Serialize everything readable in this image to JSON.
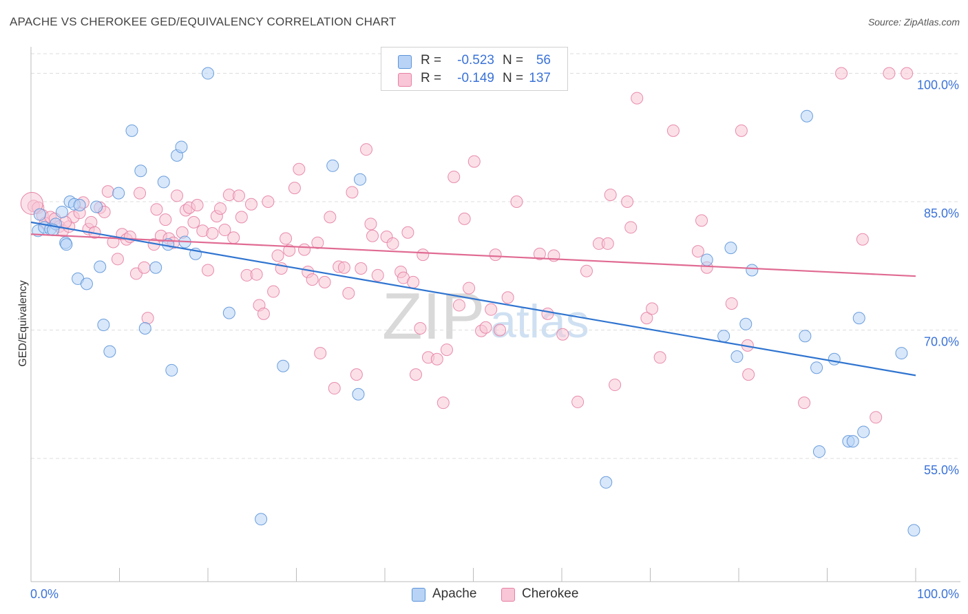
{
  "header": {
    "title": "APACHE VS CHEROKEE GED/EQUIVALENCY CORRELATION CHART",
    "source": "Source: ZipAtlas.com"
  },
  "watermark": {
    "zip": "ZIP",
    "atlas": "atlas"
  },
  "legend": {
    "r_label": "R =",
    "n_label": "N =",
    "rows": [
      {
        "r": "-0.523",
        "n": "56"
      },
      {
        "r": "-0.149",
        "n": "137"
      }
    ]
  },
  "colors": {
    "apache_fill": "#b8d3f5",
    "apache_stroke": "#5b93d8",
    "apache_line": "#2f74d0",
    "cherokee_fill": "#f8c6d6",
    "cherokee_stroke": "#e680a3",
    "cherokee_line": "#e06a92",
    "value_text": "#3a72d8",
    "grid": "#dddddd"
  },
  "chart_data": {
    "type": "scatter",
    "title": "APACHE VS CHEROKEE GED/EQUIVALENCY CORRELATION CHART",
    "xlabel": "",
    "ylabel": "GED/Equivalency",
    "xlim": [
      0,
      100
    ],
    "ylim": [
      40.6,
      103.1
    ],
    "x_tick_labels": [
      "0.0%",
      "100.0%"
    ],
    "y_ticks": [
      55,
      70,
      85,
      100
    ],
    "y_tick_labels": [
      "55.0%",
      "70.0%",
      "85.0%",
      "100.0%"
    ],
    "grid": true,
    "legend_position": "top-center",
    "series": [
      {
        "name": "Apache",
        "r": -0.523,
        "n": 56,
        "trend": {
          "x": [
            0,
            100
          ],
          "y": [
            82.6,
            64.7
          ]
        },
        "points": [
          [
            0.8,
            81.6
          ],
          [
            1.5,
            82.0
          ],
          [
            2.2,
            81.8
          ],
          [
            2.8,
            82.4
          ],
          [
            3.5,
            83.8
          ],
          [
            3.9,
            80.2
          ],
          [
            4.4,
            85.0
          ],
          [
            4.9,
            84.7
          ],
          [
            5.5,
            84.6
          ],
          [
            5.3,
            76.0
          ],
          [
            6.3,
            75.4
          ],
          [
            7.4,
            84.4
          ],
          [
            7.8,
            77.4
          ],
          [
            8.2,
            70.6
          ],
          [
            8.9,
            67.5
          ],
          [
            9.9,
            86.0
          ],
          [
            11.4,
            93.3
          ],
          [
            12.4,
            88.6
          ],
          [
            12.9,
            70.2
          ],
          [
            14.1,
            77.3
          ],
          [
            15.0,
            87.3
          ],
          [
            15.9,
            65.3
          ],
          [
            16.5,
            90.4
          ],
          [
            17.0,
            91.4
          ],
          [
            17.4,
            80.3
          ],
          [
            15.5,
            80.0
          ],
          [
            18.6,
            78.9
          ],
          [
            20.0,
            100.0
          ],
          [
            22.4,
            72.0
          ],
          [
            26.0,
            47.9
          ],
          [
            28.5,
            65.8
          ],
          [
            34.1,
            89.2
          ],
          [
            37.2,
            87.6
          ],
          [
            37.0,
            62.5
          ],
          [
            42.8,
            100.0
          ],
          [
            65.0,
            52.2
          ],
          [
            76.4,
            78.2
          ],
          [
            78.3,
            69.3
          ],
          [
            79.1,
            79.6
          ],
          [
            79.8,
            66.9
          ],
          [
            80.8,
            70.7
          ],
          [
            81.5,
            77.0
          ],
          [
            87.7,
            95.0
          ],
          [
            87.5,
            69.3
          ],
          [
            88.8,
            65.6
          ],
          [
            89.1,
            55.8
          ],
          [
            90.8,
            66.6
          ],
          [
            92.4,
            57.0
          ],
          [
            92.9,
            57.0
          ],
          [
            93.6,
            71.4
          ],
          [
            94.1,
            58.1
          ],
          [
            98.4,
            67.3
          ],
          [
            99.8,
            46.6
          ],
          [
            1.0,
            83.5
          ],
          [
            4.0,
            80.0
          ],
          [
            2.5,
            81.7
          ]
        ]
      },
      {
        "name": "Cherokee",
        "r": -0.149,
        "n": 137,
        "trend": {
          "x": [
            0,
            100
          ],
          "y": [
            81.2,
            76.3
          ]
        },
        "points": [
          [
            0.3,
            84.5
          ],
          [
            0.8,
            84.3
          ],
          [
            1.3,
            83.4
          ],
          [
            1.6,
            82.5
          ],
          [
            2.2,
            83.2
          ],
          [
            2.7,
            83.0
          ],
          [
            3.2,
            82.1
          ],
          [
            3.6,
            81.6
          ],
          [
            4.3,
            82.1
          ],
          [
            4.8,
            83.2
          ],
          [
            5.5,
            83.7
          ],
          [
            5.9,
            84.9
          ],
          [
            6.5,
            81.8
          ],
          [
            6.8,
            82.6
          ],
          [
            7.2,
            81.4
          ],
          [
            7.8,
            84.3
          ],
          [
            8.3,
            83.8
          ],
          [
            8.7,
            86.2
          ],
          [
            9.3,
            80.3
          ],
          [
            9.8,
            78.3
          ],
          [
            10.3,
            81.2
          ],
          [
            10.8,
            80.6
          ],
          [
            11.2,
            80.9
          ],
          [
            11.9,
            76.6
          ],
          [
            12.3,
            86.0
          ],
          [
            12.8,
            77.3
          ],
          [
            13.2,
            71.4
          ],
          [
            13.9,
            80.0
          ],
          [
            14.2,
            84.1
          ],
          [
            14.7,
            81.0
          ],
          [
            15.2,
            82.9
          ],
          [
            15.6,
            80.7
          ],
          [
            16.1,
            80.2
          ],
          [
            16.5,
            85.7
          ],
          [
            17.1,
            81.4
          ],
          [
            17.5,
            84.0
          ],
          [
            17.9,
            84.3
          ],
          [
            18.4,
            82.6
          ],
          [
            18.8,
            84.6
          ],
          [
            19.4,
            81.6
          ],
          [
            20.0,
            77.0
          ],
          [
            20.5,
            81.3
          ],
          [
            21.0,
            83.3
          ],
          [
            21.4,
            84.2
          ],
          [
            21.9,
            81.7
          ],
          [
            22.4,
            85.8
          ],
          [
            22.9,
            80.8
          ],
          [
            23.5,
            85.7
          ],
          [
            23.8,
            83.2
          ],
          [
            24.4,
            76.4
          ],
          [
            24.9,
            84.7
          ],
          [
            25.5,
            76.5
          ],
          [
            25.8,
            72.9
          ],
          [
            26.3,
            71.9
          ],
          [
            26.8,
            85.0
          ],
          [
            27.4,
            74.5
          ],
          [
            27.9,
            78.7
          ],
          [
            28.3,
            77.2
          ],
          [
            28.8,
            80.7
          ],
          [
            29.2,
            79.3
          ],
          [
            29.8,
            86.6
          ],
          [
            30.3,
            88.8
          ],
          [
            30.9,
            79.4
          ],
          [
            31.3,
            76.8
          ],
          [
            31.8,
            75.9
          ],
          [
            32.4,
            80.2
          ],
          [
            32.7,
            67.3
          ],
          [
            33.2,
            75.6
          ],
          [
            33.8,
            83.2
          ],
          [
            34.3,
            63.2
          ],
          [
            34.8,
            77.4
          ],
          [
            35.4,
            77.3
          ],
          [
            35.9,
            74.3
          ],
          [
            36.3,
            86.1
          ],
          [
            36.8,
            64.8
          ],
          [
            37.3,
            77.2
          ],
          [
            37.9,
            91.1
          ],
          [
            38.4,
            82.4
          ],
          [
            38.6,
            81.0
          ],
          [
            39.2,
            76.4
          ],
          [
            40.2,
            80.9
          ],
          [
            40.9,
            80.1
          ],
          [
            41.8,
            76.8
          ],
          [
            42.1,
            76.1
          ],
          [
            42.6,
            81.4
          ],
          [
            43.2,
            75.6
          ],
          [
            43.5,
            64.8
          ],
          [
            44.0,
            70.2
          ],
          [
            44.3,
            78.8
          ],
          [
            44.9,
            66.8
          ],
          [
            45.9,
            66.6
          ],
          [
            46.6,
            61.5
          ],
          [
            47.0,
            67.7
          ],
          [
            47.8,
            87.9
          ],
          [
            48.4,
            72.9
          ],
          [
            49.0,
            83.0
          ],
          [
            49.5,
            74.9
          ],
          [
            50.1,
            89.7
          ],
          [
            50.9,
            69.9
          ],
          [
            51.4,
            70.3
          ],
          [
            52.0,
            72.4
          ],
          [
            52.5,
            78.8
          ],
          [
            53.0,
            70.0
          ],
          [
            53.9,
            73.8
          ],
          [
            54.9,
            85.0
          ],
          [
            57.5,
            78.9
          ],
          [
            58.4,
            71.9
          ],
          [
            59.1,
            78.7
          ],
          [
            60.1,
            69.5
          ],
          [
            61.8,
            61.6
          ],
          [
            62.8,
            76.9
          ],
          [
            64.2,
            80.1
          ],
          [
            65.2,
            80.1
          ],
          [
            65.5,
            85.8
          ],
          [
            66.0,
            63.6
          ],
          [
            67.4,
            85.0
          ],
          [
            67.8,
            82.0
          ],
          [
            68.5,
            97.1
          ],
          [
            69.6,
            71.4
          ],
          [
            70.2,
            72.5
          ],
          [
            71.1,
            66.8
          ],
          [
            72.6,
            93.3
          ],
          [
            75.4,
            79.2
          ],
          [
            75.8,
            82.8
          ],
          [
            76.4,
            77.3
          ],
          [
            79.2,
            73.1
          ],
          [
            80.3,
            93.3
          ],
          [
            81.0,
            68.2
          ],
          [
            81.1,
            64.8
          ],
          [
            87.4,
            61.5
          ],
          [
            91.6,
            100.0
          ],
          [
            94.0,
            80.6
          ],
          [
            95.5,
            59.8
          ],
          [
            97.0,
            100.0
          ],
          [
            99.0,
            100.0
          ],
          [
            42.7,
            100.0
          ],
          [
            3.9,
            82.6
          ]
        ]
      }
    ]
  },
  "bottom_legend": {
    "items": [
      "Apache",
      "Cherokee"
    ]
  }
}
